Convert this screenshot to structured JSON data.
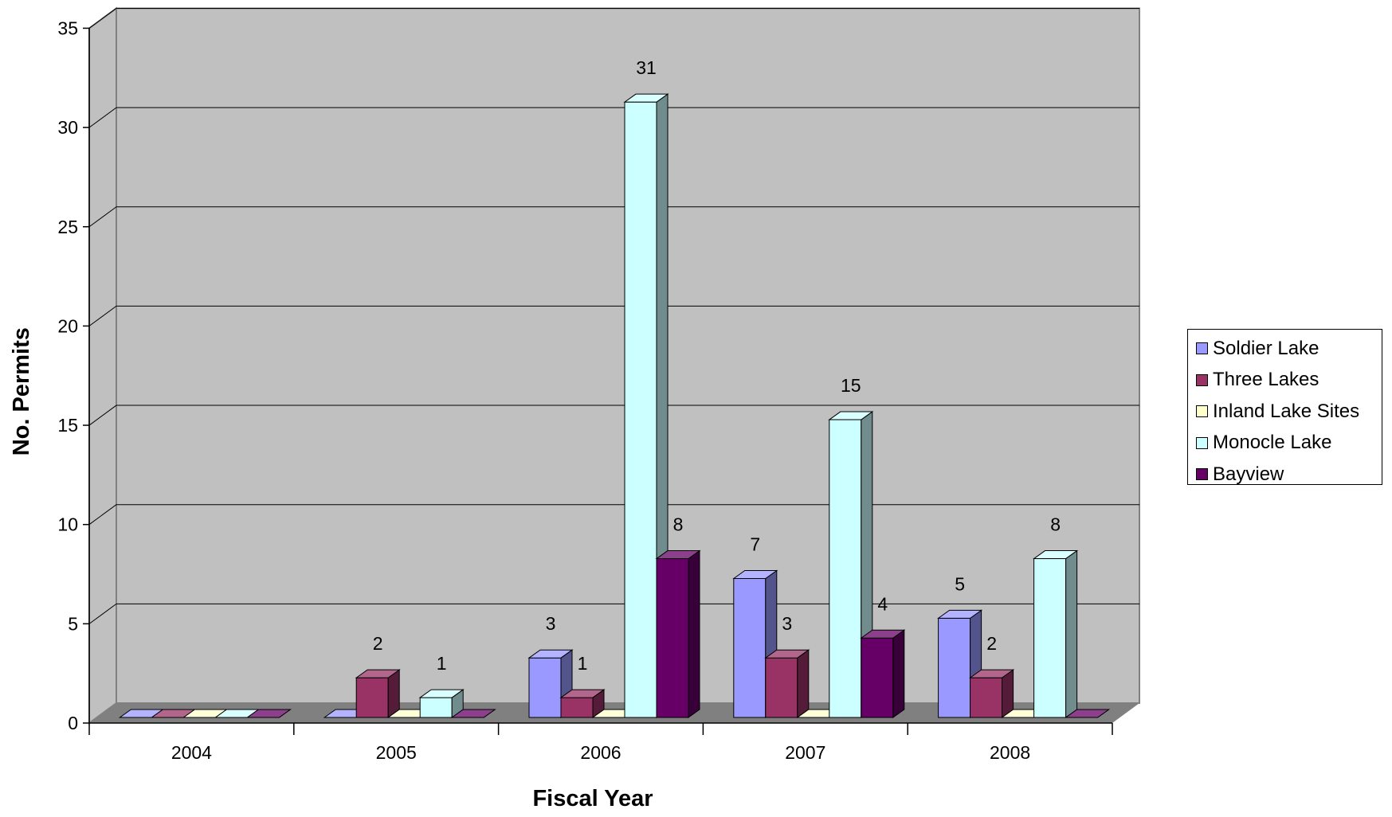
{
  "chart_data": {
    "type": "bar",
    "title": "",
    "xlabel": "Fiscal Year",
    "ylabel": "No. Permits",
    "categories": [
      "2004",
      "2005",
      "2006",
      "2007",
      "2008"
    ],
    "series": [
      {
        "name": "Soldier Lake",
        "values": [
          0,
          0,
          3,
          7,
          5
        ],
        "color": "#9999ff"
      },
      {
        "name": "Three Lakes",
        "values": [
          0,
          2,
          1,
          3,
          2
        ],
        "color": "#993366"
      },
      {
        "name": "Inland Lake Sites",
        "values": [
          0,
          0,
          0,
          0,
          0
        ],
        "color": "#ffffcc"
      },
      {
        "name": "Monocle Lake",
        "values": [
          0,
          1,
          31,
          15,
          8
        ],
        "color": "#ccffff"
      },
      {
        "name": "Bayview",
        "values": [
          0,
          0,
          8,
          4,
          0
        ],
        "color": "#660066"
      }
    ],
    "data_labels": [
      {
        "category": "2005",
        "series": "Three Lakes",
        "text": "2"
      },
      {
        "category": "2005",
        "series": "Monocle Lake",
        "text": "1"
      },
      {
        "category": "2006",
        "series": "Soldier Lake",
        "text": "3"
      },
      {
        "category": "2006",
        "series": "Three Lakes",
        "text": "1"
      },
      {
        "category": "2006",
        "series": "Monocle Lake",
        "text": "31"
      },
      {
        "category": "2006",
        "series": "Bayview",
        "text": "8"
      },
      {
        "category": "2007",
        "series": "Soldier Lake",
        "text": "7"
      },
      {
        "category": "2007",
        "series": "Three Lakes",
        "text": "3"
      },
      {
        "category": "2007",
        "series": "Monocle Lake",
        "text": "15"
      },
      {
        "category": "2007",
        "series": "Bayview",
        "text": "4"
      },
      {
        "category": "2008",
        "series": "Soldier Lake",
        "text": "5"
      },
      {
        "category": "2008",
        "series": "Three Lakes",
        "text": "2"
      },
      {
        "category": "2008",
        "series": "Monocle Lake",
        "text": "8"
      }
    ],
    "y_ticks": [
      "0",
      "5",
      "10",
      "15",
      "20",
      "25",
      "30",
      "35"
    ],
    "ylim": [
      0,
      35
    ],
    "grid": true,
    "style": "3d-clustered-column",
    "legend_position": "right",
    "wall_color": "#c0c0c0",
    "floor_color": "#808080"
  }
}
